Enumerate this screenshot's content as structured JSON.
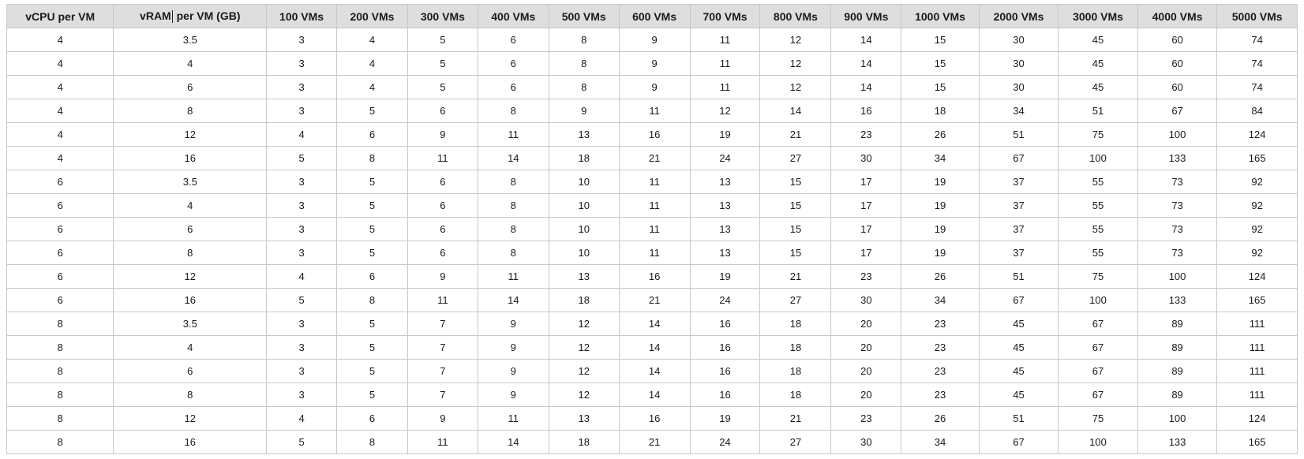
{
  "table": {
    "headers": [
      "vCPU per VM",
      "vRAM per VM (GB)",
      "100 VMs",
      "200 VMs",
      "300 VMs",
      "400 VMs",
      "500 VMs",
      "600 VMs",
      "700 VMs",
      "800 VMs",
      "900 VMs",
      "1000 VMs",
      "2000 VMs",
      "3000 VMs",
      "4000 VMs",
      "5000 VMs"
    ],
    "rows": [
      [
        "4",
        "3.5",
        "3",
        "4",
        "5",
        "6",
        "8",
        "9",
        "11",
        "12",
        "14",
        "15",
        "30",
        "45",
        "60",
        "74"
      ],
      [
        "4",
        "4",
        "3",
        "4",
        "5",
        "6",
        "8",
        "9",
        "11",
        "12",
        "14",
        "15",
        "30",
        "45",
        "60",
        "74"
      ],
      [
        "4",
        "6",
        "3",
        "4",
        "5",
        "6",
        "8",
        "9",
        "11",
        "12",
        "14",
        "15",
        "30",
        "45",
        "60",
        "74"
      ],
      [
        "4",
        "8",
        "3",
        "5",
        "6",
        "8",
        "9",
        "11",
        "12",
        "14",
        "16",
        "18",
        "34",
        "51",
        "67",
        "84"
      ],
      [
        "4",
        "12",
        "4",
        "6",
        "9",
        "11",
        "13",
        "16",
        "19",
        "21",
        "23",
        "26",
        "51",
        "75",
        "100",
        "124"
      ],
      [
        "4",
        "16",
        "5",
        "8",
        "11",
        "14",
        "18",
        "21",
        "24",
        "27",
        "30",
        "34",
        "67",
        "100",
        "133",
        "165"
      ],
      [
        "6",
        "3.5",
        "3",
        "5",
        "6",
        "8",
        "10",
        "11",
        "13",
        "15",
        "17",
        "19",
        "37",
        "55",
        "73",
        "92"
      ],
      [
        "6",
        "4",
        "3",
        "5",
        "6",
        "8",
        "10",
        "11",
        "13",
        "15",
        "17",
        "19",
        "37",
        "55",
        "73",
        "92"
      ],
      [
        "6",
        "6",
        "3",
        "5",
        "6",
        "8",
        "10",
        "11",
        "13",
        "15",
        "17",
        "19",
        "37",
        "55",
        "73",
        "92"
      ],
      [
        "6",
        "8",
        "3",
        "5",
        "6",
        "8",
        "10",
        "11",
        "13",
        "15",
        "17",
        "19",
        "37",
        "55",
        "73",
        "92"
      ],
      [
        "6",
        "12",
        "4",
        "6",
        "9",
        "11",
        "13",
        "16",
        "19",
        "21",
        "23",
        "26",
        "51",
        "75",
        "100",
        "124"
      ],
      [
        "6",
        "16",
        "5",
        "8",
        "11",
        "14",
        "18",
        "21",
        "24",
        "27",
        "30",
        "34",
        "67",
        "100",
        "133",
        "165"
      ],
      [
        "8",
        "3.5",
        "3",
        "5",
        "7",
        "9",
        "12",
        "14",
        "16",
        "18",
        "20",
        "23",
        "45",
        "67",
        "89",
        "111"
      ],
      [
        "8",
        "4",
        "3",
        "5",
        "7",
        "9",
        "12",
        "14",
        "16",
        "18",
        "20",
        "23",
        "45",
        "67",
        "89",
        "111"
      ],
      [
        "8",
        "6",
        "3",
        "5",
        "7",
        "9",
        "12",
        "14",
        "16",
        "18",
        "20",
        "23",
        "45",
        "67",
        "89",
        "111"
      ],
      [
        "8",
        "8",
        "3",
        "5",
        "7",
        "9",
        "12",
        "14",
        "16",
        "18",
        "20",
        "23",
        "45",
        "67",
        "89",
        "111"
      ],
      [
        "8",
        "12",
        "4",
        "6",
        "9",
        "11",
        "13",
        "16",
        "19",
        "21",
        "23",
        "26",
        "51",
        "75",
        "100",
        "124"
      ],
      [
        "8",
        "16",
        "5",
        "8",
        "11",
        "14",
        "18",
        "21",
        "24",
        "27",
        "30",
        "34",
        "67",
        "100",
        "133",
        "165"
      ]
    ]
  }
}
